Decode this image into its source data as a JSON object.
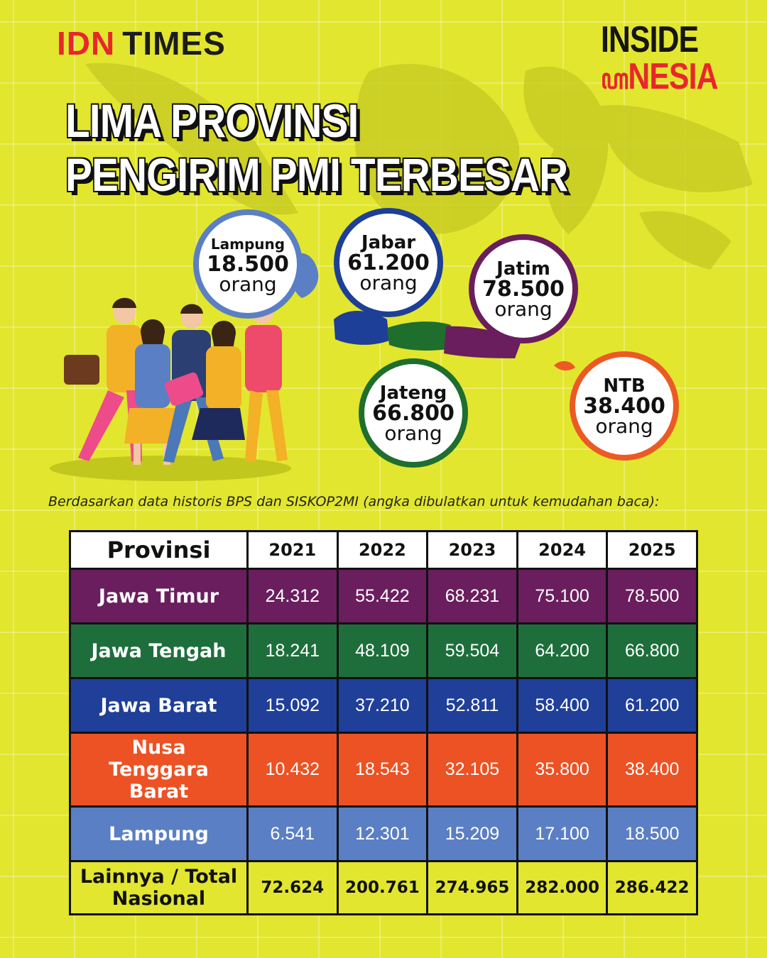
{
  "brand": {
    "idn": "IDN",
    "times": "TIMES",
    "inside_line1": "INSIDE",
    "inside_line2": "NESIA"
  },
  "title": {
    "line1": "LIMA PROVINSI",
    "line2": "PENGIRIM PMI TERBESAR"
  },
  "bubbles": [
    {
      "name": "Lampung",
      "value": "18.500",
      "unit": "orang",
      "color": "#5b7fc4"
    },
    {
      "name": "Jabar",
      "value": "61.200",
      "unit": "orang",
      "color": "#1e3f97"
    },
    {
      "name": "Jatim",
      "value": "78.500",
      "unit": "orang",
      "color": "#6a1e5e"
    },
    {
      "name": "Jateng",
      "value": "66.800",
      "unit": "orang",
      "color": "#1e6e2e"
    },
    {
      "name": "NTB",
      "value": "38.400",
      "unit": "orang",
      "color": "#ec5a24"
    }
  ],
  "source_note": "Berdasarkan data historis BPS dan SISKOP2MI (angka dibulatkan untuk kemudahan baca):",
  "table": {
    "headers": [
      "Provinsi",
      "2021",
      "2022",
      "2023",
      "2024",
      "2025"
    ],
    "rows": [
      {
        "province": "Jawa Timur",
        "color": "#6a1e5e",
        "values": [
          "24.312",
          "55.422",
          "68.231",
          "75.100",
          "78.500"
        ]
      },
      {
        "province": "Jawa Tengah",
        "color": "#1e6e3c",
        "values": [
          "18.241",
          "48.109",
          "59.504",
          "64.200",
          "66.800"
        ]
      },
      {
        "province": "Jawa Barat",
        "color": "#1f3f98",
        "values": [
          "15.092",
          "37.210",
          "52.811",
          "58.400",
          "61.200"
        ]
      },
      {
        "province": "Nusa Tenggara Barat",
        "province_lines": [
          "Nusa",
          "Tenggara",
          "Barat"
        ],
        "color": "#ec5224",
        "values": [
          "10.432",
          "18.543",
          "32.105",
          "35.800",
          "38.400"
        ]
      },
      {
        "province": "Lampung",
        "color": "#5b7fc4",
        "values": [
          "6.541",
          "12.301",
          "15.209",
          "17.100",
          "18.500"
        ]
      }
    ],
    "total": {
      "label_lines": [
        "Lainnya / Total",
        "Nasional"
      ],
      "values": [
        "72.624",
        "200.761",
        "274.965",
        "282.000",
        "286.422"
      ]
    }
  }
}
